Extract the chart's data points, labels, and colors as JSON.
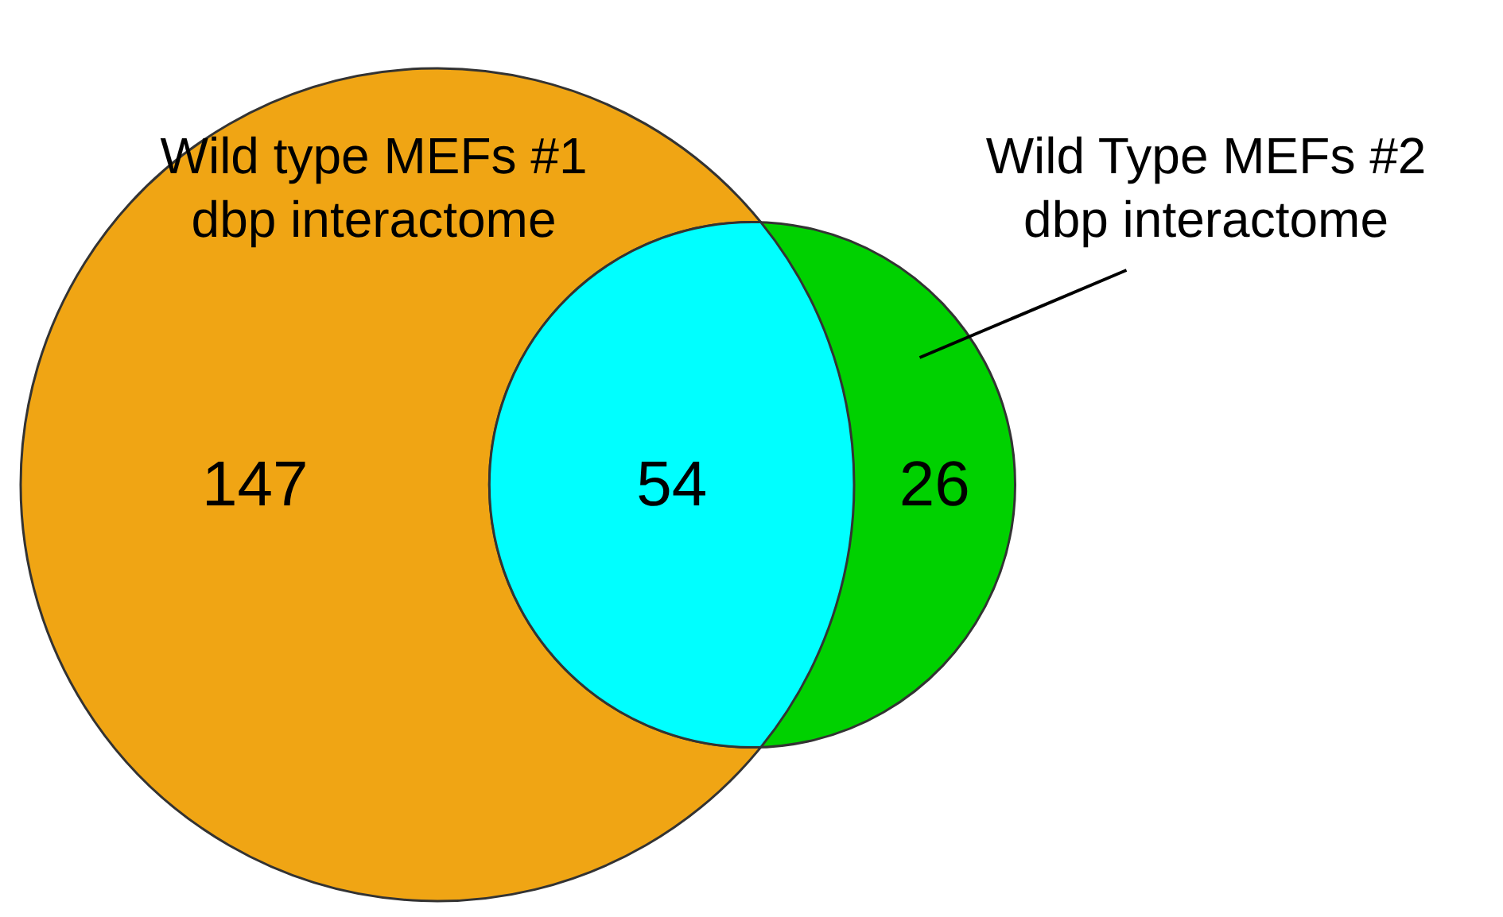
{
  "chart_data": {
    "type": "other",
    "values": [
      147,
      54,
      26
    ],
    "colors": [
      "#f0a514",
      "#00ffff",
      "#00d100"
    ],
    "data_labels": true,
    "annotations": [
      "Wild type MEFs #1\ndbp interactome",
      "Wild Type MEFs #2\ndbp interactome"
    ]
  }
}
